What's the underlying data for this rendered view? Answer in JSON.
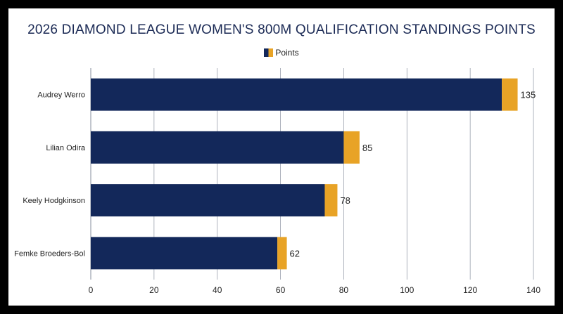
{
  "colors": {
    "primary": "#13285a",
    "accent": "#e8a326",
    "grid": "#9aa0ad",
    "text": "#222222",
    "title": "#1b2a55"
  },
  "chart_data": {
    "type": "bar",
    "orientation": "horizontal",
    "stacked": true,
    "title": "2026 DIAMOND LEAGUE WOMEN'S 800M QUALIFICATION STANDINGS POINTS",
    "xlabel": "",
    "ylabel": "",
    "legend": {
      "label": "Points",
      "position": "top-center"
    },
    "categories": [
      "Audrey Werro",
      "Lilian Odira",
      "Keely Hodgkinson",
      "Femke Broeders-Bol"
    ],
    "totals": [
      135,
      85,
      78,
      62
    ],
    "series": [
      {
        "values": [
          130,
          80,
          74,
          59
        ]
      },
      {
        "values": [
          5,
          5,
          4,
          3
        ]
      }
    ],
    "xlim": [
      0,
      140
    ],
    "xticks": [
      0,
      20,
      40,
      60,
      80,
      100,
      120,
      140
    ],
    "grid": "vertical"
  }
}
